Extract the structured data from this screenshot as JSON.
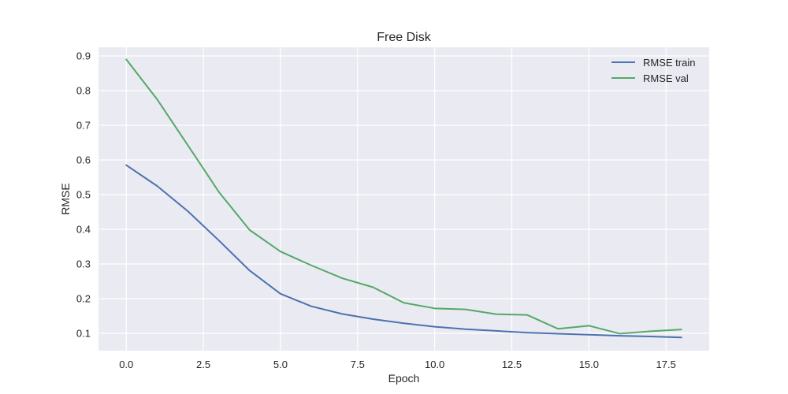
{
  "chart_data": {
    "type": "line",
    "title": "Free Disk",
    "xlabel": "Epoch",
    "ylabel": "RMSE",
    "xlim": [
      -0.9,
      18.9
    ],
    "ylim": [
      0.05,
      0.925
    ],
    "xticks": [
      "0.0",
      "2.5",
      "5.0",
      "7.5",
      "10.0",
      "12.5",
      "15.0",
      "17.5"
    ],
    "yticks": [
      "0.1",
      "0.2",
      "0.3",
      "0.4",
      "0.5",
      "0.6",
      "0.7",
      "0.8",
      "0.9"
    ],
    "x": [
      0,
      1,
      2,
      3,
      4,
      5,
      6,
      7,
      8,
      9,
      10,
      11,
      12,
      13,
      14,
      15,
      16,
      17,
      18
    ],
    "series": [
      {
        "name": "RMSE train",
        "color": "#4c72b0",
        "values": [
          0.585,
          0.525,
          0.452,
          0.368,
          0.281,
          0.214,
          0.178,
          0.156,
          0.141,
          0.129,
          0.119,
          0.112,
          0.107,
          0.102,
          0.099,
          0.096,
          0.093,
          0.091,
          0.088
        ]
      },
      {
        "name": "RMSE val",
        "color": "#55a868",
        "values": [
          0.89,
          0.775,
          0.642,
          0.508,
          0.398,
          0.336,
          0.296,
          0.259,
          0.233,
          0.188,
          0.172,
          0.169,
          0.155,
          0.153,
          0.113,
          0.122,
          0.099,
          0.106,
          0.111
        ]
      }
    ],
    "grid": true,
    "legend": "top-right",
    "background": "#eaeaf2"
  }
}
